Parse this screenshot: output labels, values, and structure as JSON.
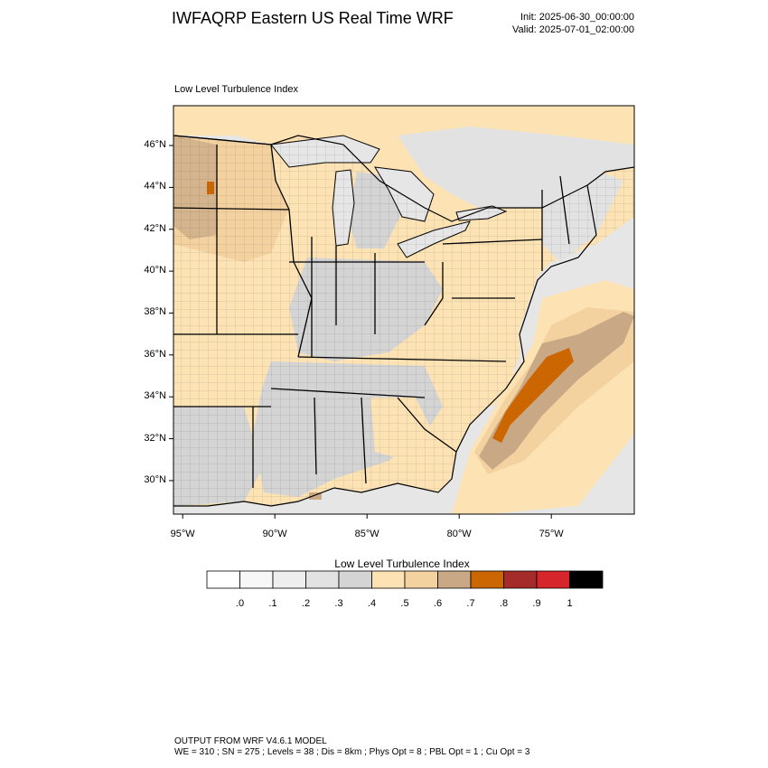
{
  "header": {
    "title": "IWFAQRP Eastern US Real Time WRF",
    "init": "Init: 2025-06-30_00:00:00",
    "valid": "Valid: 2025-07-01_02:00:00"
  },
  "map": {
    "title": "Low Level Turbulence Index",
    "lat_labels": [
      "46°N",
      "44°N",
      "42°N",
      "40°N",
      "38°N",
      "36°N",
      "34°N",
      "32°N",
      "30°N"
    ],
    "lon_labels": [
      "95°W",
      "90°W",
      "85°W",
      "80°W",
      "75°W"
    ],
    "lat_range": [
      28.4,
      47.9
    ],
    "lon_range": [
      -95.5,
      -70.5
    ],
    "colors": {
      "ocean": "#e6e6e6",
      "land_low": "#d4d4d4",
      "land_mid": "#fde3b4",
      "land_high": "#f4d2a0",
      "hotspot": "#cc6600",
      "belt": "#c9a985"
    }
  },
  "colorbar": {
    "title": "Low Level Turbulence Index",
    "labels": [
      ".0",
      ".1",
      ".2",
      ".3",
      ".4",
      ".5",
      ".6",
      ".7",
      ".8",
      ".9",
      "1"
    ],
    "colors": [
      "#ffffff",
      "#f7f7f7",
      "#eeeeee",
      "#e2e2e2",
      "#d4d4d4",
      "#fde3b4",
      "#f4d2a0",
      "#c9a985",
      "#cc6600",
      "#a52a2a",
      "#d7262b",
      "#000000"
    ]
  },
  "footer": {
    "line1": "OUTPUT FROM WRF V4.6.1 MODEL",
    "line2": "WE = 310 ; SN = 275 ; Levels = 38 ; Dis = 8km ; Phys Opt = 8 ; PBL Opt = 1 ; Cu Opt = 3"
  }
}
